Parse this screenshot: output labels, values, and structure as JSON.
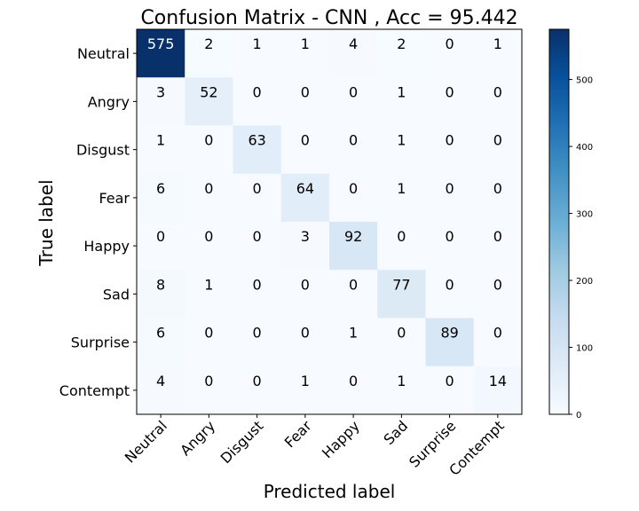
{
  "chart_data": {
    "type": "heatmap",
    "title": "Confusion Matrix - CNN , Acc = 95.442",
    "xlabel": "Predicted label",
    "ylabel": "True label",
    "x_categories": [
      "Neutral",
      "Angry",
      "Disgust",
      "Fear",
      "Happy",
      "Sad",
      "Surprise",
      "Contempt"
    ],
    "y_categories": [
      "Neutral",
      "Angry",
      "Disgust",
      "Fear",
      "Happy",
      "Sad",
      "Surprise",
      "Contempt"
    ],
    "values": [
      [
        575,
        2,
        1,
        1,
        4,
        2,
        0,
        1
      ],
      [
        3,
        52,
        0,
        0,
        0,
        1,
        0,
        0
      ],
      [
        1,
        0,
        63,
        0,
        0,
        1,
        0,
        0
      ],
      [
        6,
        0,
        0,
        64,
        0,
        1,
        0,
        0
      ],
      [
        0,
        0,
        0,
        3,
        92,
        0,
        0,
        0
      ],
      [
        8,
        1,
        0,
        0,
        0,
        77,
        0,
        0
      ],
      [
        6,
        0,
        0,
        0,
        1,
        0,
        89,
        0
      ],
      [
        4,
        0,
        0,
        1,
        0,
        1,
        0,
        14
      ]
    ],
    "colormap": "Blues",
    "value_range": [
      0,
      575
    ],
    "colorbar": {
      "ticks": [
        0,
        100,
        200,
        300,
        400,
        500
      ]
    }
  }
}
